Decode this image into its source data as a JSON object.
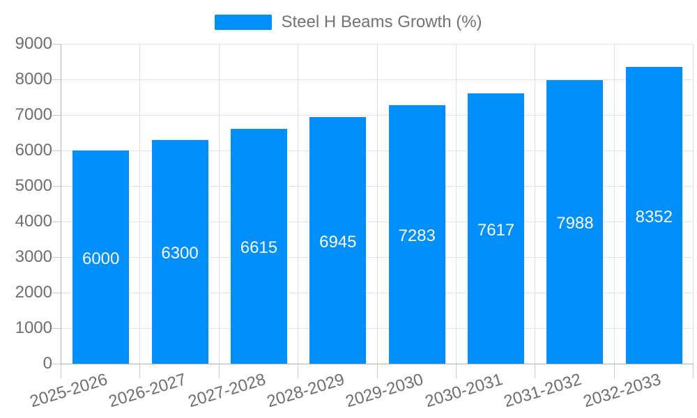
{
  "colors": {
    "bar": "#008FFB",
    "grid_horizontal": "#e4e4e4",
    "grid_vertical": "#dedede",
    "axis": "#b0b0b0",
    "tick": "#c9c9c9",
    "axis_label": "#6e6e6e",
    "bar_label": "#ffffff",
    "legend_text": "#727272",
    "background": "#ffffff"
  },
  "chart_data": {
    "type": "bar",
    "title": "",
    "legend": "Steel H Beams Growth (%)",
    "legend_position": "top",
    "grid": true,
    "categories": [
      "2025-2026",
      "2026-2027",
      "2027-2028",
      "2028-2029",
      "2029-2030",
      "2030-2031",
      "2031-2032",
      "2032-2033"
    ],
    "values": [
      6000,
      6300,
      6615,
      6945,
      7283,
      7617,
      7988,
      8352
    ],
    "xlabel": "",
    "ylabel": "",
    "ylim": [
      0,
      9000
    ],
    "ytick_step": 1000,
    "ytick_labels": [
      "0",
      "1000",
      "2000",
      "3000",
      "4000",
      "5000",
      "6000",
      "7000",
      "8000",
      "9000"
    ],
    "data_labels": "centered-white"
  }
}
